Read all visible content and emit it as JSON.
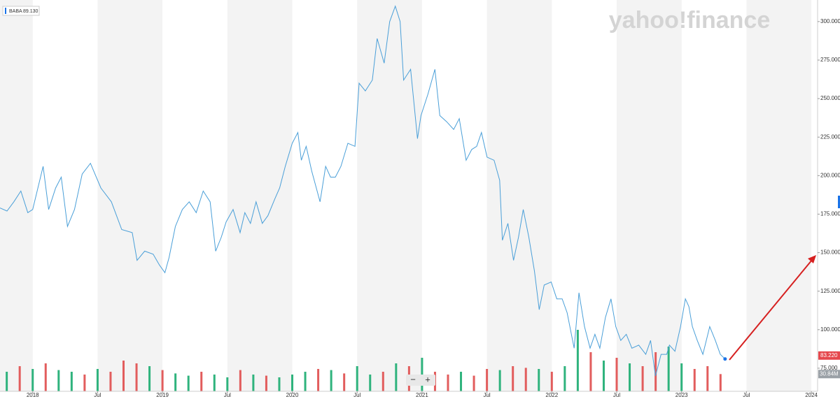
{
  "chart_data": {
    "type": "line",
    "watermark": "yahoo!finance",
    "legend_value": {
      "value": 89.13,
      "label": "89.130"
    },
    "controls": [
      "−",
      "+"
    ],
    "xlim": [
      2017.748,
      2024.048
    ],
    "xticks": [
      {
        "value": 2018,
        "label": "2018"
      },
      {
        "value": 2018.5,
        "label": "Jul"
      },
      {
        "value": 2019,
        "label": "2019"
      },
      {
        "value": 2019.5,
        "label": "Jul"
      },
      {
        "value": 2020,
        "label": "2020"
      },
      {
        "value": 2020.5,
        "label": "Jul"
      },
      {
        "value": 2021,
        "label": "2021"
      },
      {
        "value": 2021.5,
        "label": "Jul"
      },
      {
        "value": 2022,
        "label": "2022"
      },
      {
        "value": 2022.5,
        "label": "Jul"
      },
      {
        "value": 2023,
        "label": "2023"
      },
      {
        "value": 2023.5,
        "label": "Jul"
      },
      {
        "value": 2024,
        "label": "2024"
      }
    ],
    "ylim": [
      60,
      314
    ],
    "yticks": [
      {
        "value": 75,
        "label": "75.000"
      },
      {
        "value": 100,
        "label": "100.000"
      },
      {
        "value": 125,
        "label": "125.000"
      },
      {
        "value": 150,
        "label": "150.000"
      },
      {
        "value": 175,
        "label": "175.000"
      },
      {
        "value": 200,
        "label": "200.000"
      },
      {
        "value": 225,
        "label": "225.000"
      },
      {
        "value": 250,
        "label": "250.000"
      },
      {
        "value": 275,
        "label": "275.000"
      },
      {
        "value": 300,
        "label": "300.000"
      }
    ],
    "y2lim": [
      0,
      700
    ],
    "last_price": {
      "value": 83.22,
      "label": "83.220"
    },
    "last_volume": {
      "value": 30.84,
      "label": "30.84M"
    },
    "series": [
      {
        "name": "BABA",
        "color": "#4a9fd8",
        "x": [
          2017.748,
          2017.802,
          2017.855,
          2017.909,
          2017.962,
          2018.0,
          2018.08,
          2018.123,
          2018.177,
          2018.22,
          2018.268,
          2018.322,
          2018.381,
          2018.445,
          2018.525,
          2018.606,
          2018.686,
          2018.767,
          2018.804,
          2018.863,
          2018.928,
          2018.976,
          2019.019,
          2019.051,
          2019.099,
          2019.153,
          2019.206,
          2019.26,
          2019.314,
          2019.367,
          2019.41,
          2019.453,
          2019.491,
          2019.544,
          2019.598,
          2019.635,
          2019.678,
          2019.721,
          2019.769,
          2019.812,
          2019.866,
          2019.903,
          2019.946,
          2020.0,
          2020.043,
          2020.07,
          2020.107,
          2020.15,
          2020.214,
          2020.257,
          2020.295,
          2020.332,
          2020.375,
          2020.429,
          2020.483,
          2020.515,
          2020.563,
          2020.617,
          2020.654,
          2020.708,
          2020.751,
          2020.794,
          2020.831,
          2020.858,
          2020.912,
          2020.965,
          2020.992,
          2021.046,
          2021.099,
          2021.137,
          2021.19,
          2021.244,
          2021.287,
          2021.34,
          2021.383,
          2021.421,
          2021.458,
          2021.501,
          2021.555,
          2021.598,
          2021.619,
          2021.662,
          2021.705,
          2021.743,
          2021.78,
          2021.823,
          2021.866,
          2021.903,
          2021.941,
          2021.995,
          2022.038,
          2022.08,
          2022.118,
          2022.172,
          2022.209,
          2022.252,
          2022.295,
          2022.332,
          2022.37,
          2022.413,
          2022.456,
          2022.493,
          2022.531,
          2022.574,
          2022.617,
          2022.67,
          2022.724,
          2022.761,
          2022.799,
          2022.842,
          2022.885,
          2022.906,
          2022.949,
          2022.992,
          2023.029,
          2023.056,
          2023.083,
          2023.121,
          2023.164,
          2023.217,
          2023.26,
          2023.298,
          2023.335
        ],
        "values": [
          179,
          177,
          183,
          190,
          176,
          178,
          206,
          178,
          192,
          199,
          167,
          178,
          201,
          208,
          192,
          183,
          165,
          163,
          145,
          151,
          149,
          142,
          137,
          147,
          167,
          178,
          183,
          176,
          190,
          183,
          151,
          160,
          170,
          178,
          163,
          176,
          169,
          183,
          169,
          174,
          185,
          192,
          206,
          221,
          228,
          210,
          219,
          203,
          183,
          206,
          199,
          199,
          206,
          221,
          219,
          260,
          255,
          262,
          289,
          273,
          300,
          310,
          300,
          262,
          269,
          224,
          239,
          253,
          269,
          239,
          235,
          230,
          237,
          210,
          217,
          219,
          228,
          212,
          210,
          197,
          158,
          169,
          145,
          160,
          178,
          160,
          138,
          113,
          129,
          131,
          120,
          120,
          111,
          88,
          124,
          102,
          88,
          97,
          88,
          108,
          120,
          102,
          93,
          97,
          88,
          90,
          84,
          93,
          70,
          84,
          84,
          90,
          86,
          102,
          120,
          115,
          102,
          93,
          84,
          102,
          93,
          84,
          81
        ]
      },
      {
        "axis": "y2",
        "x": [
          2017.8,
          2017.9,
          2018.0,
          2018.1,
          2018.2,
          2018.3,
          2018.4,
          2018.5,
          2018.6,
          2018.7,
          2018.8,
          2018.9,
          2019.0,
          2019.1,
          2019.2,
          2019.3,
          2019.4,
          2019.5,
          2019.6,
          2019.7,
          2019.8,
          2019.9,
          2020.0,
          2020.1,
          2020.2,
          2020.3,
          2020.4,
          2020.5,
          2020.6,
          2020.7,
          2020.8,
          2020.9,
          2021.0,
          2021.1,
          2021.2,
          2021.3,
          2021.4,
          2021.5,
          2021.6,
          2021.7,
          2021.8,
          2021.9,
          2022.0,
          2022.1,
          2022.2,
          2022.3,
          2022.4,
          2022.5,
          2022.6,
          2022.7,
          2022.8,
          2022.9,
          2023.0,
          2023.1,
          2023.2,
          2023.3
        ],
        "values": [
          35,
          45,
          40,
          50,
          38,
          35,
          30,
          40,
          35,
          55,
          50,
          45,
          38,
          32,
          28,
          35,
          30,
          25,
          38,
          30,
          28,
          25,
          30,
          35,
          40,
          38,
          32,
          45,
          30,
          35,
          50,
          45,
          60,
          35,
          30,
          35,
          28,
          40,
          38,
          45,
          42,
          40,
          35,
          45,
          110,
          70,
          55,
          60,
          50,
          45,
          70,
          80,
          50,
          40,
          45,
          30.84
        ],
        "colors": [
          "#2fb37d",
          "#e25d5d",
          "#2fb37d",
          "#e25d5d",
          "#2fb37d",
          "#2fb37d",
          "#e25d5d",
          "#2fb37d",
          "#e25d5d",
          "#e25d5d",
          "#e25d5d",
          "#2fb37d",
          "#e25d5d",
          "#2fb37d",
          "#2fb37d",
          "#e25d5d",
          "#2fb37d",
          "#2fb37d",
          "#e25d5d",
          "#2fb37d",
          "#e25d5d",
          "#2fb37d",
          "#2fb37d",
          "#2fb37d",
          "#e25d5d",
          "#2fb37d",
          "#e25d5d",
          "#2fb37d",
          "#2fb37d",
          "#e25d5d",
          "#2fb37d",
          "#e25d5d",
          "#2fb37d",
          "#e25d5d",
          "#e25d5d",
          "#2fb37d",
          "#e25d5d",
          "#e25d5d",
          "#2fb37d",
          "#e25d5d",
          "#e25d5d",
          "#2fb37d",
          "#e25d5d",
          "#2fb37d",
          "#2fb37d",
          "#e25d5d",
          "#2fb37d",
          "#e25d5d",
          "#2fb37d",
          "#e25d5d",
          "#e25d5d",
          "#2fb37d",
          "#2fb37d",
          "#e25d5d",
          "#e25d5d",
          "#e25d5d"
        ]
      }
    ]
  }
}
